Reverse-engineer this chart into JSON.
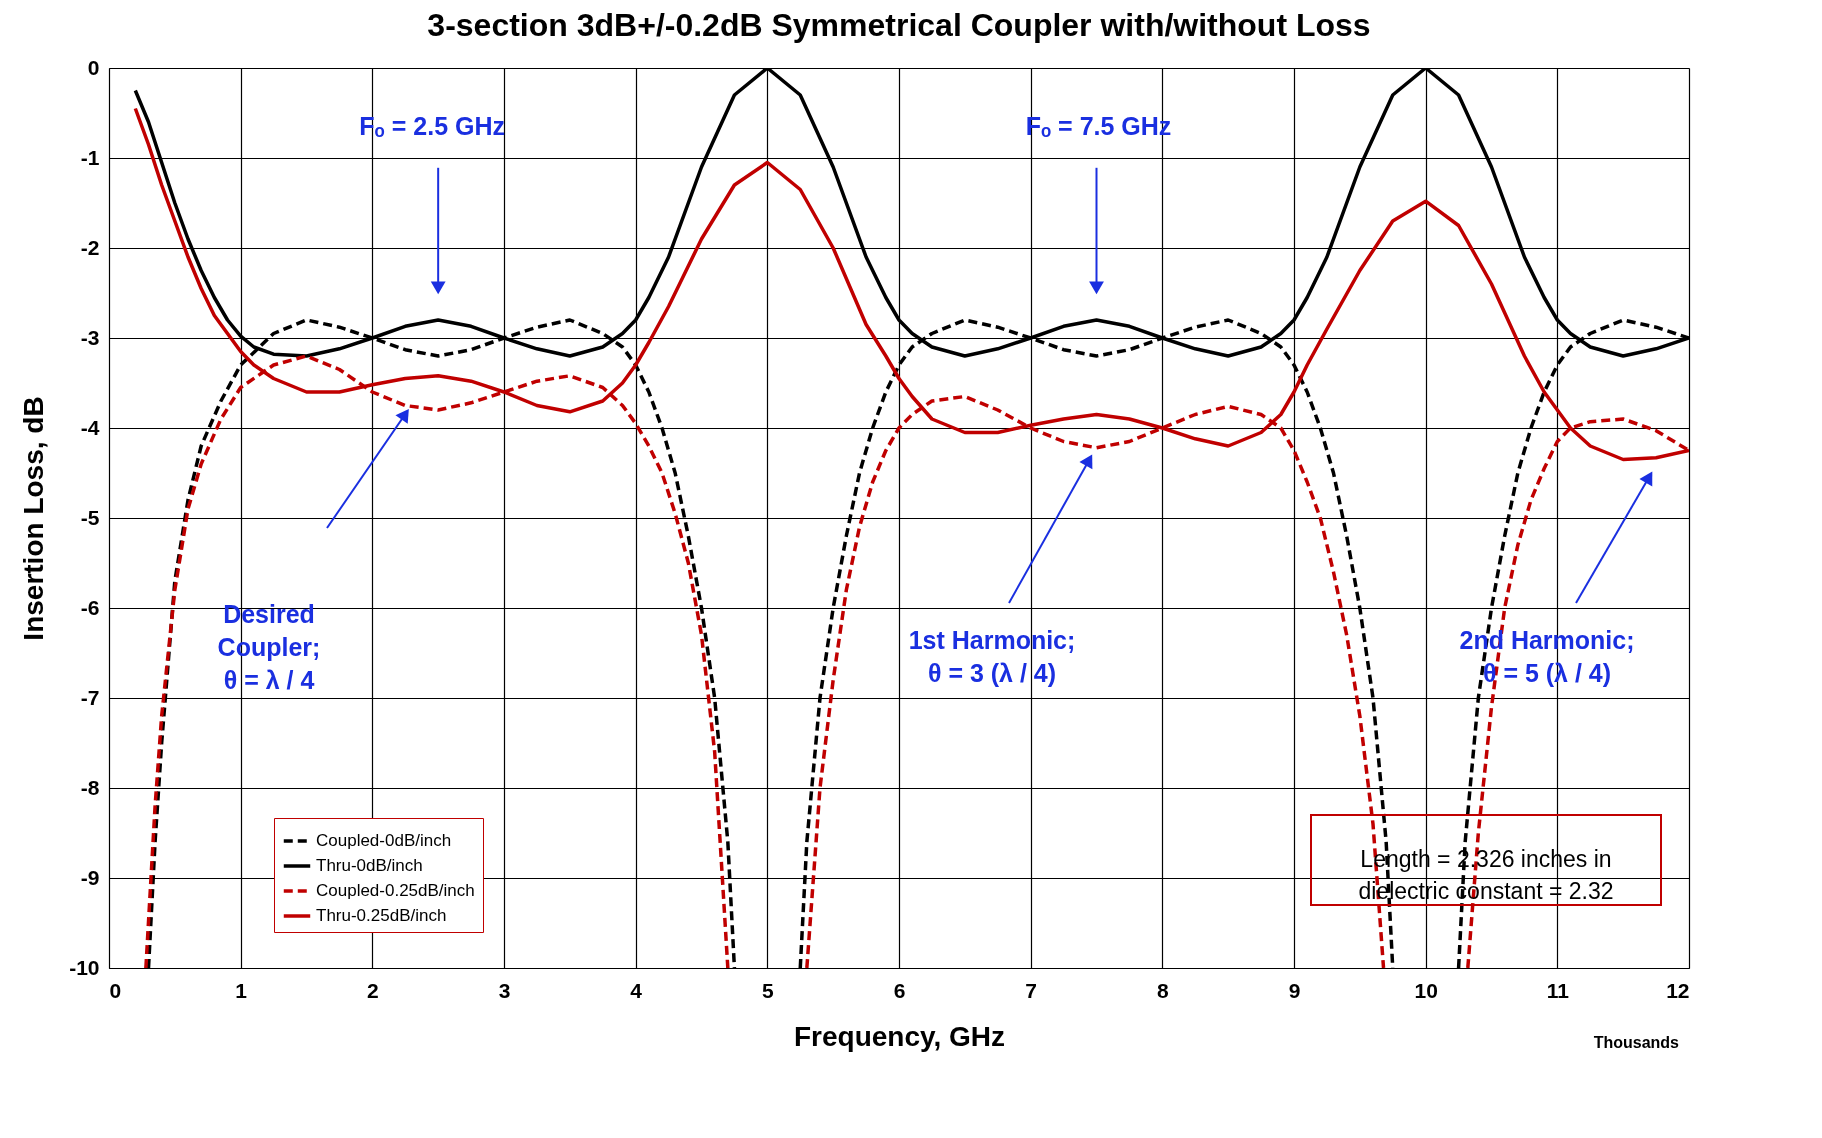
{
  "chart_data": {
    "type": "line",
    "title": "3-section 3dB+/-0.2dB Symmetrical Coupler with/without Loss",
    "xlabel": "Frequency, GHz",
    "ylabel": "Insertion Loss, dB",
    "xlim": [
      0,
      12
    ],
    "ylim": [
      -10,
      0
    ],
    "xticks": [
      0,
      1,
      2,
      3,
      4,
      5,
      6,
      7,
      8,
      9,
      10,
      11,
      12
    ],
    "yticks": [
      0,
      -1,
      -2,
      -3,
      -4,
      -5,
      -6,
      -7,
      -8,
      -9,
      -10
    ],
    "grid": true,
    "legend": "bottom left",
    "series": [
      {
        "name": "Coupled-0dB/inch",
        "color": "#000000",
        "line_style": "dashed",
        "x": [
          0.3,
          0.35,
          0.4,
          0.5,
          0.6,
          0.7,
          0.85,
          1,
          1.25,
          1.5,
          1.75,
          2,
          2.25,
          2.5,
          2.75,
          3,
          3.25,
          3.5,
          3.75,
          3.9,
          4,
          4.1,
          4.2,
          4.3,
          4.4,
          4.5,
          4.6,
          4.7,
          4.75,
          5,
          5.25,
          5.3,
          5.4,
          5.5,
          5.6,
          5.7,
          5.8,
          5.9,
          6,
          6.1,
          6.25,
          6.5,
          6.75,
          7,
          7.25,
          7.5,
          7.75,
          8,
          8.25,
          8.5,
          8.75,
          8.9,
          9,
          9.1,
          9.2,
          9.3,
          9.4,
          9.5,
          9.6,
          9.7,
          9.75,
          10,
          10.25,
          10.3,
          10.4,
          10.5,
          10.6,
          10.7,
          10.8,
          10.9,
          11,
          11.1,
          11.25,
          11.5,
          11.75,
          12
        ],
        "values": [
          -10,
          -8.6,
          -7.5,
          -5.7,
          -4.8,
          -4.2,
          -3.7,
          -3.3,
          -2.95,
          -2.8,
          -2.88,
          -3.0,
          -3.13,
          -3.2,
          -3.13,
          -3.0,
          -2.88,
          -2.8,
          -2.95,
          -3.1,
          -3.3,
          -3.6,
          -4.0,
          -4.5,
          -5.2,
          -6.0,
          -7.0,
          -8.6,
          -10,
          null,
          -10,
          -8.6,
          -7.0,
          -6.0,
          -5.2,
          -4.5,
          -4.0,
          -3.6,
          -3.3,
          -3.1,
          -2.95,
          -2.8,
          -2.88,
          -3.0,
          -3.13,
          -3.2,
          -3.13,
          -3.0,
          -2.88,
          -2.8,
          -2.95,
          -3.1,
          -3.3,
          -3.6,
          -4.0,
          -4.5,
          -5.2,
          -6.0,
          -7.0,
          -8.6,
          -10,
          null,
          -10,
          -8.6,
          -7.0,
          -6.0,
          -5.2,
          -4.5,
          -4.0,
          -3.6,
          -3.3,
          -3.1,
          -2.95,
          -2.8,
          -2.88,
          -3.0
        ]
      },
      {
        "name": "Thru-0dB/inch",
        "color": "#000000",
        "line_style": "solid",
        "x": [
          0.2,
          0.3,
          0.4,
          0.5,
          0.6,
          0.7,
          0.8,
          0.9,
          1,
          1.1,
          1.25,
          1.5,
          1.75,
          2,
          2.25,
          2.5,
          2.75,
          3,
          3.25,
          3.5,
          3.75,
          3.9,
          4,
          4.1,
          4.25,
          4.5,
          4.75,
          5,
          5.25,
          5.5,
          5.75,
          5.9,
          6,
          6.1,
          6.25,
          6.5,
          6.75,
          7,
          7.25,
          7.5,
          7.75,
          8,
          8.25,
          8.5,
          8.75,
          8.9,
          9,
          9.1,
          9.25,
          9.5,
          9.75,
          10,
          10.25,
          10.5,
          10.75,
          10.9,
          11,
          11.1,
          11.25,
          11.5,
          11.75,
          12
        ],
        "values": [
          -0.25,
          -0.6,
          -1.05,
          -1.5,
          -1.9,
          -2.25,
          -2.55,
          -2.8,
          -2.98,
          -3.1,
          -3.18,
          -3.2,
          -3.12,
          -3.0,
          -2.87,
          -2.8,
          -2.87,
          -3.0,
          -3.12,
          -3.2,
          -3.1,
          -2.95,
          -2.8,
          -2.55,
          -2.1,
          -1.1,
          -0.3,
          0,
          -0.3,
          -1.1,
          -2.1,
          -2.55,
          -2.8,
          -2.95,
          -3.1,
          -3.2,
          -3.12,
          -3.0,
          -2.87,
          -2.8,
          -2.87,
          -3.0,
          -3.12,
          -3.2,
          -3.1,
          -2.95,
          -2.8,
          -2.55,
          -2.1,
          -1.1,
          -0.3,
          0,
          -0.3,
          -1.1,
          -2.1,
          -2.55,
          -2.8,
          -2.95,
          -3.1,
          -3.2,
          -3.12,
          -3.0
        ]
      },
      {
        "name": "Coupled-0.25dB/inch",
        "color": "#c00000",
        "line_style": "dashed",
        "x": [
          0.28,
          0.35,
          0.4,
          0.5,
          0.6,
          0.7,
          0.85,
          1,
          1.25,
          1.5,
          1.75,
          2,
          2.25,
          2.5,
          2.75,
          3,
          3.25,
          3.5,
          3.75,
          3.9,
          4,
          4.1,
          4.2,
          4.3,
          4.4,
          4.5,
          4.6,
          4.7,
          5,
          5.3,
          5.4,
          5.5,
          5.6,
          5.7,
          5.8,
          5.9,
          6,
          6.1,
          6.25,
          6.5,
          6.75,
          7,
          7.25,
          7.5,
          7.75,
          8,
          8.25,
          8.5,
          8.75,
          8.9,
          9,
          9.1,
          9.2,
          9.3,
          9.4,
          9.5,
          9.6,
          9.68,
          10,
          10.32,
          10.4,
          10.5,
          10.6,
          10.7,
          10.8,
          10.9,
          11,
          11.1,
          11.25,
          11.5,
          11.75,
          12
        ],
        "values": [
          -10,
          -8.2,
          -7.2,
          -5.8,
          -4.9,
          -4.4,
          -3.9,
          -3.55,
          -3.3,
          -3.2,
          -3.35,
          -3.6,
          -3.75,
          -3.8,
          -3.72,
          -3.6,
          -3.48,
          -3.42,
          -3.55,
          -3.75,
          -3.95,
          -4.2,
          -4.5,
          -4.95,
          -5.5,
          -6.3,
          -7.6,
          -10,
          null,
          -10,
          -8.0,
          -6.8,
          -5.8,
          -5.1,
          -4.6,
          -4.25,
          -4.0,
          -3.85,
          -3.7,
          -3.65,
          -3.8,
          -4.0,
          -4.15,
          -4.22,
          -4.15,
          -4.0,
          -3.85,
          -3.76,
          -3.85,
          -4.0,
          -4.25,
          -4.6,
          -5.0,
          -5.6,
          -6.3,
          -7.2,
          -8.4,
          -10,
          null,
          -10,
          -8.5,
          -7.1,
          -6.0,
          -5.3,
          -4.8,
          -4.45,
          -4.15,
          -4.0,
          -3.93,
          -3.9,
          -4.03,
          -4.25
        ]
      },
      {
        "name": "Thru-0.25dB/inch",
        "color": "#c00000",
        "line_style": "solid",
        "x": [
          0.2,
          0.3,
          0.4,
          0.5,
          0.6,
          0.7,
          0.8,
          0.9,
          1,
          1.1,
          1.25,
          1.5,
          1.75,
          2,
          2.25,
          2.5,
          2.75,
          3,
          3.25,
          3.5,
          3.75,
          3.9,
          4,
          4.1,
          4.25,
          4.5,
          4.75,
          5,
          5.25,
          5.5,
          5.75,
          5.9,
          6,
          6.1,
          6.25,
          6.5,
          6.75,
          7,
          7.25,
          7.5,
          7.75,
          8,
          8.25,
          8.5,
          8.75,
          8.9,
          9,
          9.1,
          9.25,
          9.5,
          9.75,
          10,
          10.25,
          10.5,
          10.75,
          10.9,
          11,
          11.1,
          11.25,
          11.5,
          11.75,
          12
        ],
        "values": [
          -0.45,
          -0.85,
          -1.3,
          -1.7,
          -2.1,
          -2.45,
          -2.75,
          -2.95,
          -3.15,
          -3.3,
          -3.45,
          -3.6,
          -3.6,
          -3.52,
          -3.45,
          -3.42,
          -3.48,
          -3.6,
          -3.75,
          -3.82,
          -3.7,
          -3.5,
          -3.3,
          -3.05,
          -2.65,
          -1.9,
          -1.3,
          -1.05,
          -1.35,
          -2.0,
          -2.85,
          -3.2,
          -3.45,
          -3.65,
          -3.9,
          -4.05,
          -4.05,
          -3.97,
          -3.9,
          -3.85,
          -3.9,
          -4.0,
          -4.12,
          -4.2,
          -4.05,
          -3.85,
          -3.6,
          -3.3,
          -2.9,
          -2.25,
          -1.7,
          -1.48,
          -1.75,
          -2.4,
          -3.2,
          -3.6,
          -3.8,
          -4.0,
          -4.2,
          -4.35,
          -4.33,
          -4.25
        ]
      }
    ],
    "annotations": [
      {
        "text": "Fₒ = 2.5 GHz",
        "x": 2.5,
        "y": -2.42
      },
      {
        "text": "Fₒ = 7.5 GHz",
        "x": 7.5,
        "y": -2.42
      },
      "Desired\nCoupler;\nθ = λ / 4",
      "1st Harmonic;\nθ = 3 (λ / 4)",
      "2nd Harmonic;\nθ = 5 (λ / 4)",
      "Length = 2.326 inches in\ndielectric constant = 2.32",
      "Thousands"
    ]
  }
}
